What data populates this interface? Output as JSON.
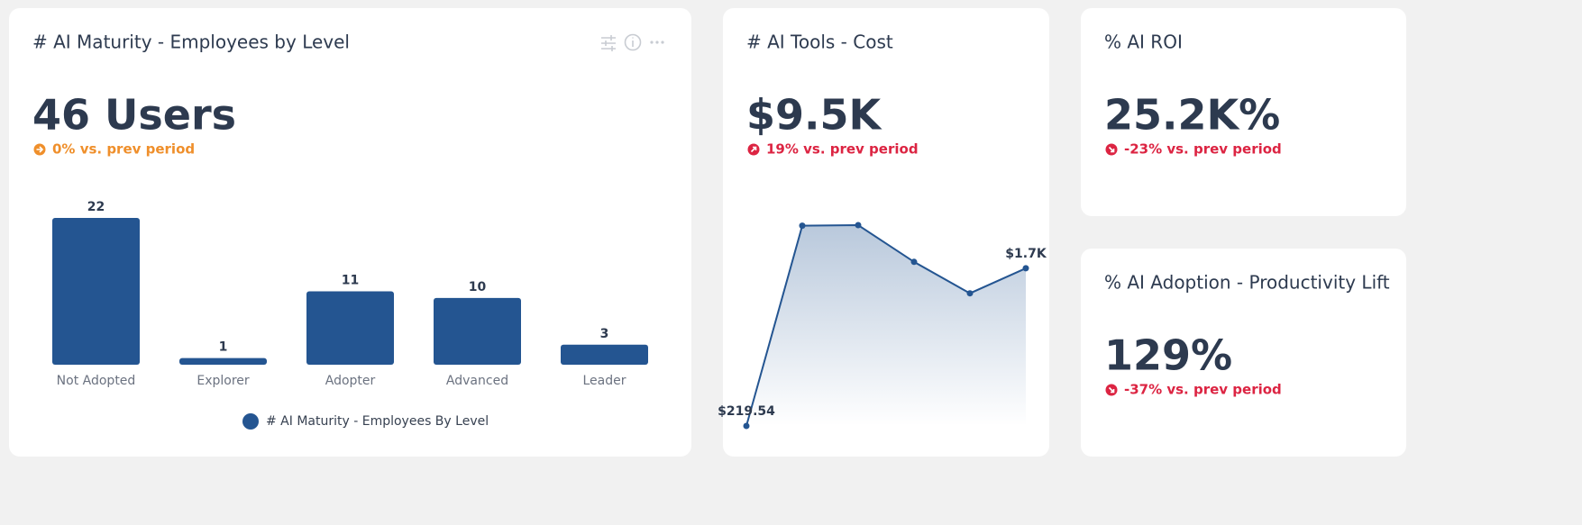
{
  "cards": [
    {
      "title": "# AI Maturity - Employees by Level",
      "metric": "46 Users",
      "change": "0% vs. prev period",
      "chart_data": {
        "type": "bar",
        "categories": [
          "Not Adopted",
          "Explorer",
          "Adopter",
          "Advanced",
          "Leader"
        ],
        "series": [
          {
            "name": "# AI Maturity - Employees By Level",
            "color": "#245591",
            "values": [
              22,
              1,
              11,
              10,
              3
            ]
          }
        ]
      }
    },
    {
      "title": "# AI Tools - Cost",
      "metric": "$9.5K",
      "change": "19% vs. prev period",
      "chart_data": {
        "type": "line",
        "series": [
          {
            "color": "#245591",
            "values": [
              219.54,
              2100,
              2105,
              1760,
              1465,
              1700
            ],
            "value_labels": [
              "$219.54",
              null,
              null,
              null,
              null,
              "$1.7K"
            ]
          }
        ]
      }
    },
    {
      "title": "% AI ROI",
      "metric": "25.2K%",
      "change": "-23% vs. prev period"
    },
    {
      "title": "% AI Adoption - Productivity Lift",
      "metric": "129%",
      "change": "-37% vs. prev period"
    }
  ]
}
